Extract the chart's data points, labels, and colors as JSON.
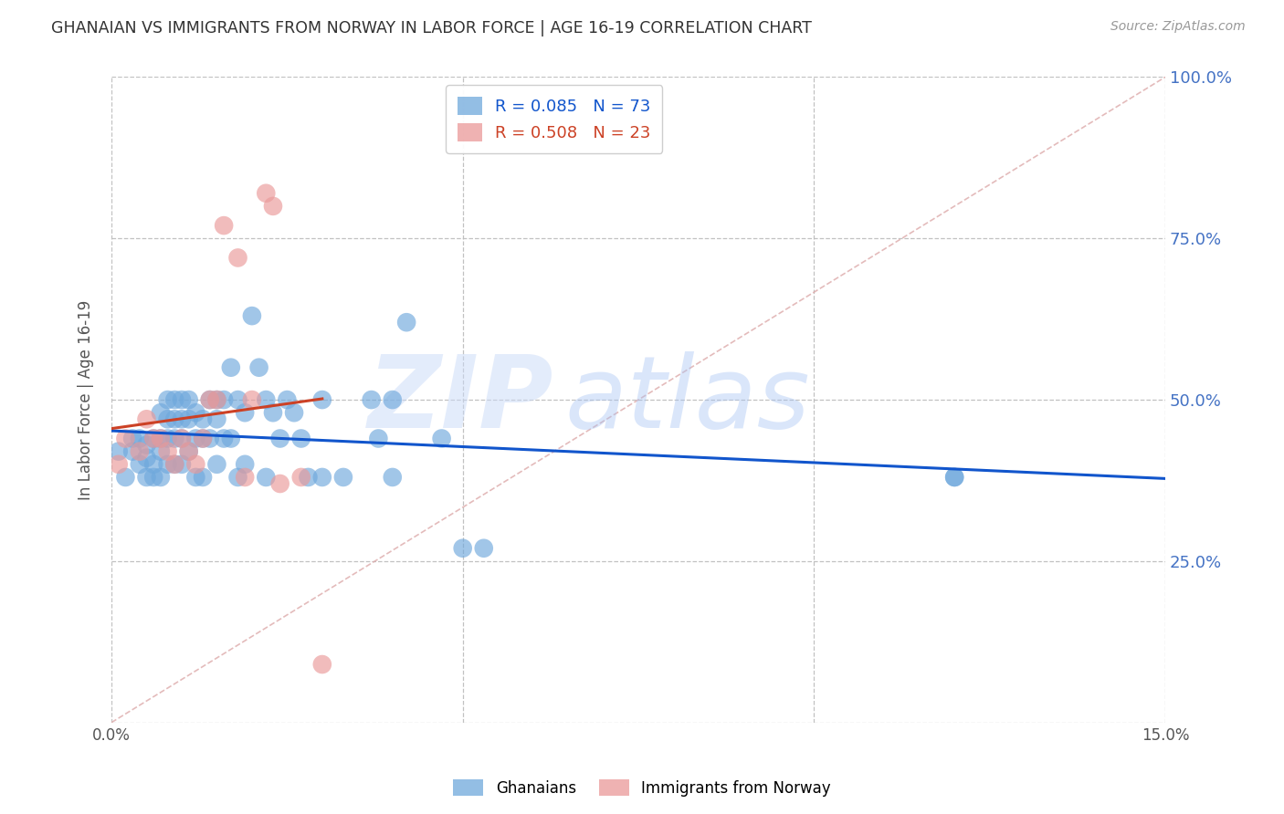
{
  "title": "GHANAIAN VS IMMIGRANTS FROM NORWAY IN LABOR FORCE | AGE 16-19 CORRELATION CHART",
  "source": "Source: ZipAtlas.com",
  "ylabel": "In Labor Force | Age 16-19",
  "xlim": [
    0.0,
    0.15
  ],
  "ylim": [
    0.0,
    1.0
  ],
  "ghanaian_R": 0.085,
  "ghanaian_N": 73,
  "norway_R": 0.508,
  "norway_N": 23,
  "blue_dot_color": "#6fa8dc",
  "pink_dot_color": "#ea9999",
  "blue_line_color": "#1155cc",
  "pink_line_color": "#cc4125",
  "background_color": "#ffffff",
  "grid_color": "#bbbbbb",
  "title_color": "#333333",
  "right_tick_color": "#4472c4",
  "source_color": "#999999",
  "ghanaian_x": [
    0.001,
    0.002,
    0.003,
    0.003,
    0.004,
    0.004,
    0.005,
    0.005,
    0.005,
    0.006,
    0.006,
    0.006,
    0.007,
    0.007,
    0.007,
    0.007,
    0.008,
    0.008,
    0.008,
    0.008,
    0.009,
    0.009,
    0.009,
    0.009,
    0.01,
    0.01,
    0.01,
    0.01,
    0.011,
    0.011,
    0.011,
    0.012,
    0.012,
    0.012,
    0.013,
    0.013,
    0.013,
    0.014,
    0.014,
    0.015,
    0.015,
    0.015,
    0.016,
    0.016,
    0.017,
    0.017,
    0.018,
    0.018,
    0.019,
    0.019,
    0.02,
    0.021,
    0.022,
    0.022,
    0.023,
    0.024,
    0.025,
    0.026,
    0.027,
    0.028,
    0.03,
    0.03,
    0.033,
    0.037,
    0.038,
    0.04,
    0.04,
    0.042,
    0.047,
    0.05,
    0.053,
    0.12,
    0.12
  ],
  "ghanaian_y": [
    0.42,
    0.38,
    0.42,
    0.44,
    0.44,
    0.4,
    0.43,
    0.41,
    0.38,
    0.44,
    0.4,
    0.38,
    0.48,
    0.44,
    0.42,
    0.38,
    0.5,
    0.47,
    0.44,
    0.4,
    0.5,
    0.47,
    0.44,
    0.4,
    0.5,
    0.47,
    0.44,
    0.4,
    0.5,
    0.47,
    0.42,
    0.48,
    0.44,
    0.38,
    0.47,
    0.44,
    0.38,
    0.5,
    0.44,
    0.5,
    0.47,
    0.4,
    0.5,
    0.44,
    0.55,
    0.44,
    0.5,
    0.38,
    0.48,
    0.4,
    0.63,
    0.55,
    0.5,
    0.38,
    0.48,
    0.44,
    0.5,
    0.48,
    0.44,
    0.38,
    0.5,
    0.38,
    0.38,
    0.5,
    0.44,
    0.5,
    0.38,
    0.62,
    0.44,
    0.27,
    0.27,
    0.38,
    0.38
  ],
  "norway_x": [
    0.001,
    0.002,
    0.004,
    0.005,
    0.006,
    0.007,
    0.008,
    0.009,
    0.01,
    0.011,
    0.012,
    0.013,
    0.014,
    0.015,
    0.016,
    0.018,
    0.019,
    0.02,
    0.022,
    0.023,
    0.024,
    0.027,
    0.03
  ],
  "norway_y": [
    0.4,
    0.44,
    0.42,
    0.47,
    0.44,
    0.44,
    0.42,
    0.4,
    0.44,
    0.42,
    0.4,
    0.44,
    0.5,
    0.5,
    0.77,
    0.72,
    0.38,
    0.5,
    0.82,
    0.8,
    0.37,
    0.38,
    0.09
  ]
}
